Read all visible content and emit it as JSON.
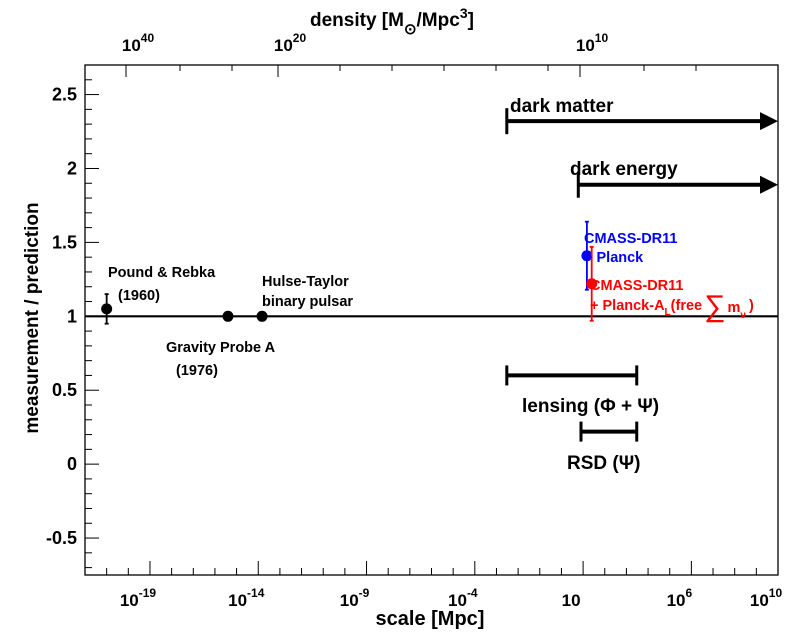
{
  "chart_data": {
    "type": "scatter",
    "title": "",
    "xlabel": "scale [Mpc]",
    "ylabel": "measurement / prediction",
    "x_scale": "log",
    "xlim": [
      1e-22,
      10000000000.0
    ],
    "ylim": [
      -0.75,
      2.7
    ],
    "y_ticks": [
      "-0.5",
      "0",
      "0.5",
      "1",
      "1.5",
      "2",
      "2.5"
    ],
    "x_ticks": [
      {
        "x": 1e-19,
        "mantissa": "10",
        "exponent": "-19"
      },
      {
        "x": 1e-14,
        "mantissa": "10",
        "exponent": "-14"
      },
      {
        "x": 1e-09,
        "mantissa": "10",
        "exponent": "-9"
      },
      {
        "x": 0.0001,
        "mantissa": "10",
        "exponent": "-4"
      },
      {
        "x": 10,
        "mantissa": "10",
        "exponent": ""
      },
      {
        "x": 1000000.0,
        "mantissa": "10",
        "exponent": "6"
      },
      {
        "x": 10000000000.0,
        "mantissa": "10",
        "exponent": "10"
      }
    ],
    "top_axis": {
      "label_main": "density [M",
      "label_sub": "⊙",
      "label_rest": "/Mpc",
      "label_sup": "3",
      "label_end": "]",
      "ticks": [
        {
          "mantissa": "10",
          "exponent": "40"
        },
        {
          "mantissa": "10",
          "exponent": "20"
        },
        {
          "mantissa": "10",
          "exponent": "10"
        }
      ]
    },
    "reference_line": 1,
    "points": [
      {
        "name": "Pound & Rebka (1960)",
        "x": 1e-21,
        "y": 1.05,
        "err": 0.1,
        "color": "#000000"
      },
      {
        "name": "Gravity Probe A (1976)",
        "x": 4e-16,
        "y": 1.0,
        "err": 0,
        "color": "#000000"
      },
      {
        "name": "Hulse-Taylor binary pulsar",
        "x": 1.5e-14,
        "y": 1.0,
        "err": 0,
        "color": "#000000"
      },
      {
        "name": "CMASS-DR11 + Planck",
        "x": 15,
        "y": 1.41,
        "err": 0.23,
        "color": "#0000ff"
      },
      {
        "name": "CMASS-DR11 + Planck-AL(free Σmν)",
        "x": 25,
        "y": 1.22,
        "err": 0.25,
        "color": "#ff0000"
      }
    ],
    "ranges": [
      {
        "name": "dark matter",
        "x_start": 0.003,
        "x_end": 10000000000.0,
        "y": 2.32,
        "arrow": true
      },
      {
        "name": "dark energy",
        "x_start": 6,
        "x_end": 10000000000.0,
        "y": 1.89,
        "arrow": true
      },
      {
        "name": "lensing",
        "x_start": 0.003,
        "x_end": 3000.0,
        "y": 0.6,
        "arrow": false
      },
      {
        "name": "RSD",
        "x_start": 8,
        "x_end": 3000.0,
        "y": 0.22,
        "arrow": false
      }
    ]
  },
  "annotations": {
    "pound": [
      "Pound & Rebka",
      "(1960)"
    ],
    "gravity": [
      "Gravity Probe A",
      "(1976)"
    ],
    "hulse": [
      "Hulse-Taylor",
      "binary pulsar"
    ],
    "dark_matter": "dark matter",
    "dark_energy": "dark energy",
    "lensing": "lensing (Φ + Ψ)",
    "rsd": "RSD (Ψ)",
    "cmass_planck": [
      "CMASS-DR11",
      "+ Planck"
    ],
    "cmass_planck_al": [
      "CMASS-DR11",
      "+ Planck-A",
      "L",
      "(free",
      "∑",
      "m",
      "ν",
      ")"
    ]
  },
  "colors": {
    "blue": "#0000ff",
    "red": "#ff0000",
    "black": "#000000"
  }
}
